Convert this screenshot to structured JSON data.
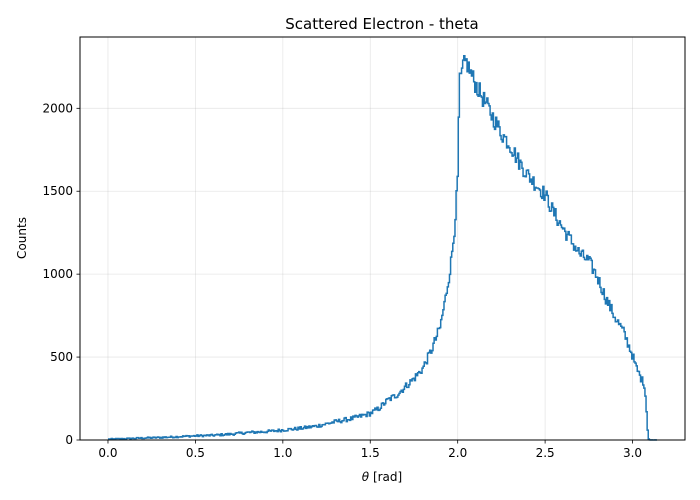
{
  "chart_data": {
    "type": "line",
    "subtype": "step-histogram",
    "title": "Scattered Electron - theta",
    "xlabel_symbol": "θ",
    "xlabel_unit": " [rad]",
    "ylabel": "Counts",
    "xlim": [
      -0.16,
      3.3
    ],
    "ylim": [
      0,
      2430
    ],
    "grid": true,
    "legend": "none",
    "line_color": "#1f77b4",
    "xticks": [
      0.0,
      0.5,
      1.0,
      1.5,
      2.0,
      2.5,
      3.0
    ],
    "xtick_labels": [
      "0.0",
      "0.5",
      "1.0",
      "1.5",
      "2.0",
      "2.5",
      "3.0"
    ],
    "yticks": [
      0,
      500,
      1000,
      1500,
      2000
    ],
    "ytick_labels": [
      "0",
      "500",
      "1000",
      "1500",
      "2000"
    ],
    "series": [
      {
        "x": [
          0.0,
          0.1,
          0.2,
          0.3,
          0.4,
          0.5,
          0.6,
          0.7,
          0.8,
          0.9,
          1.0,
          1.1,
          1.2,
          1.3,
          1.4,
          1.5,
          1.55,
          1.6,
          1.65,
          1.7,
          1.75,
          1.8,
          1.85,
          1.9,
          1.93,
          1.96,
          1.98,
          2.0,
          2.01,
          2.02,
          2.03,
          2.05,
          2.08,
          2.1,
          2.15,
          2.2,
          2.25,
          2.3,
          2.35,
          2.4,
          2.45,
          2.5,
          2.55,
          2.6,
          2.65,
          2.7,
          2.75,
          2.8,
          2.85,
          2.9,
          2.95,
          3.0,
          3.02,
          3.05,
          3.07,
          3.08,
          3.09,
          3.1,
          3.14
        ],
        "y": [
          5,
          8,
          12,
          15,
          20,
          25,
          28,
          35,
          45,
          50,
          60,
          70,
          85,
          110,
          130,
          160,
          190,
          240,
          270,
          320,
          370,
          430,
          540,
          680,
          850,
          1050,
          1250,
          1550,
          2150,
          2180,
          2250,
          2280,
          2200,
          2150,
          2050,
          1950,
          1850,
          1780,
          1680,
          1600,
          1540,
          1480,
          1370,
          1280,
          1200,
          1120,
          1080,
          980,
          850,
          740,
          650,
          510,
          440,
          370,
          330,
          180,
          10,
          0,
          0
        ]
      }
    ]
  }
}
